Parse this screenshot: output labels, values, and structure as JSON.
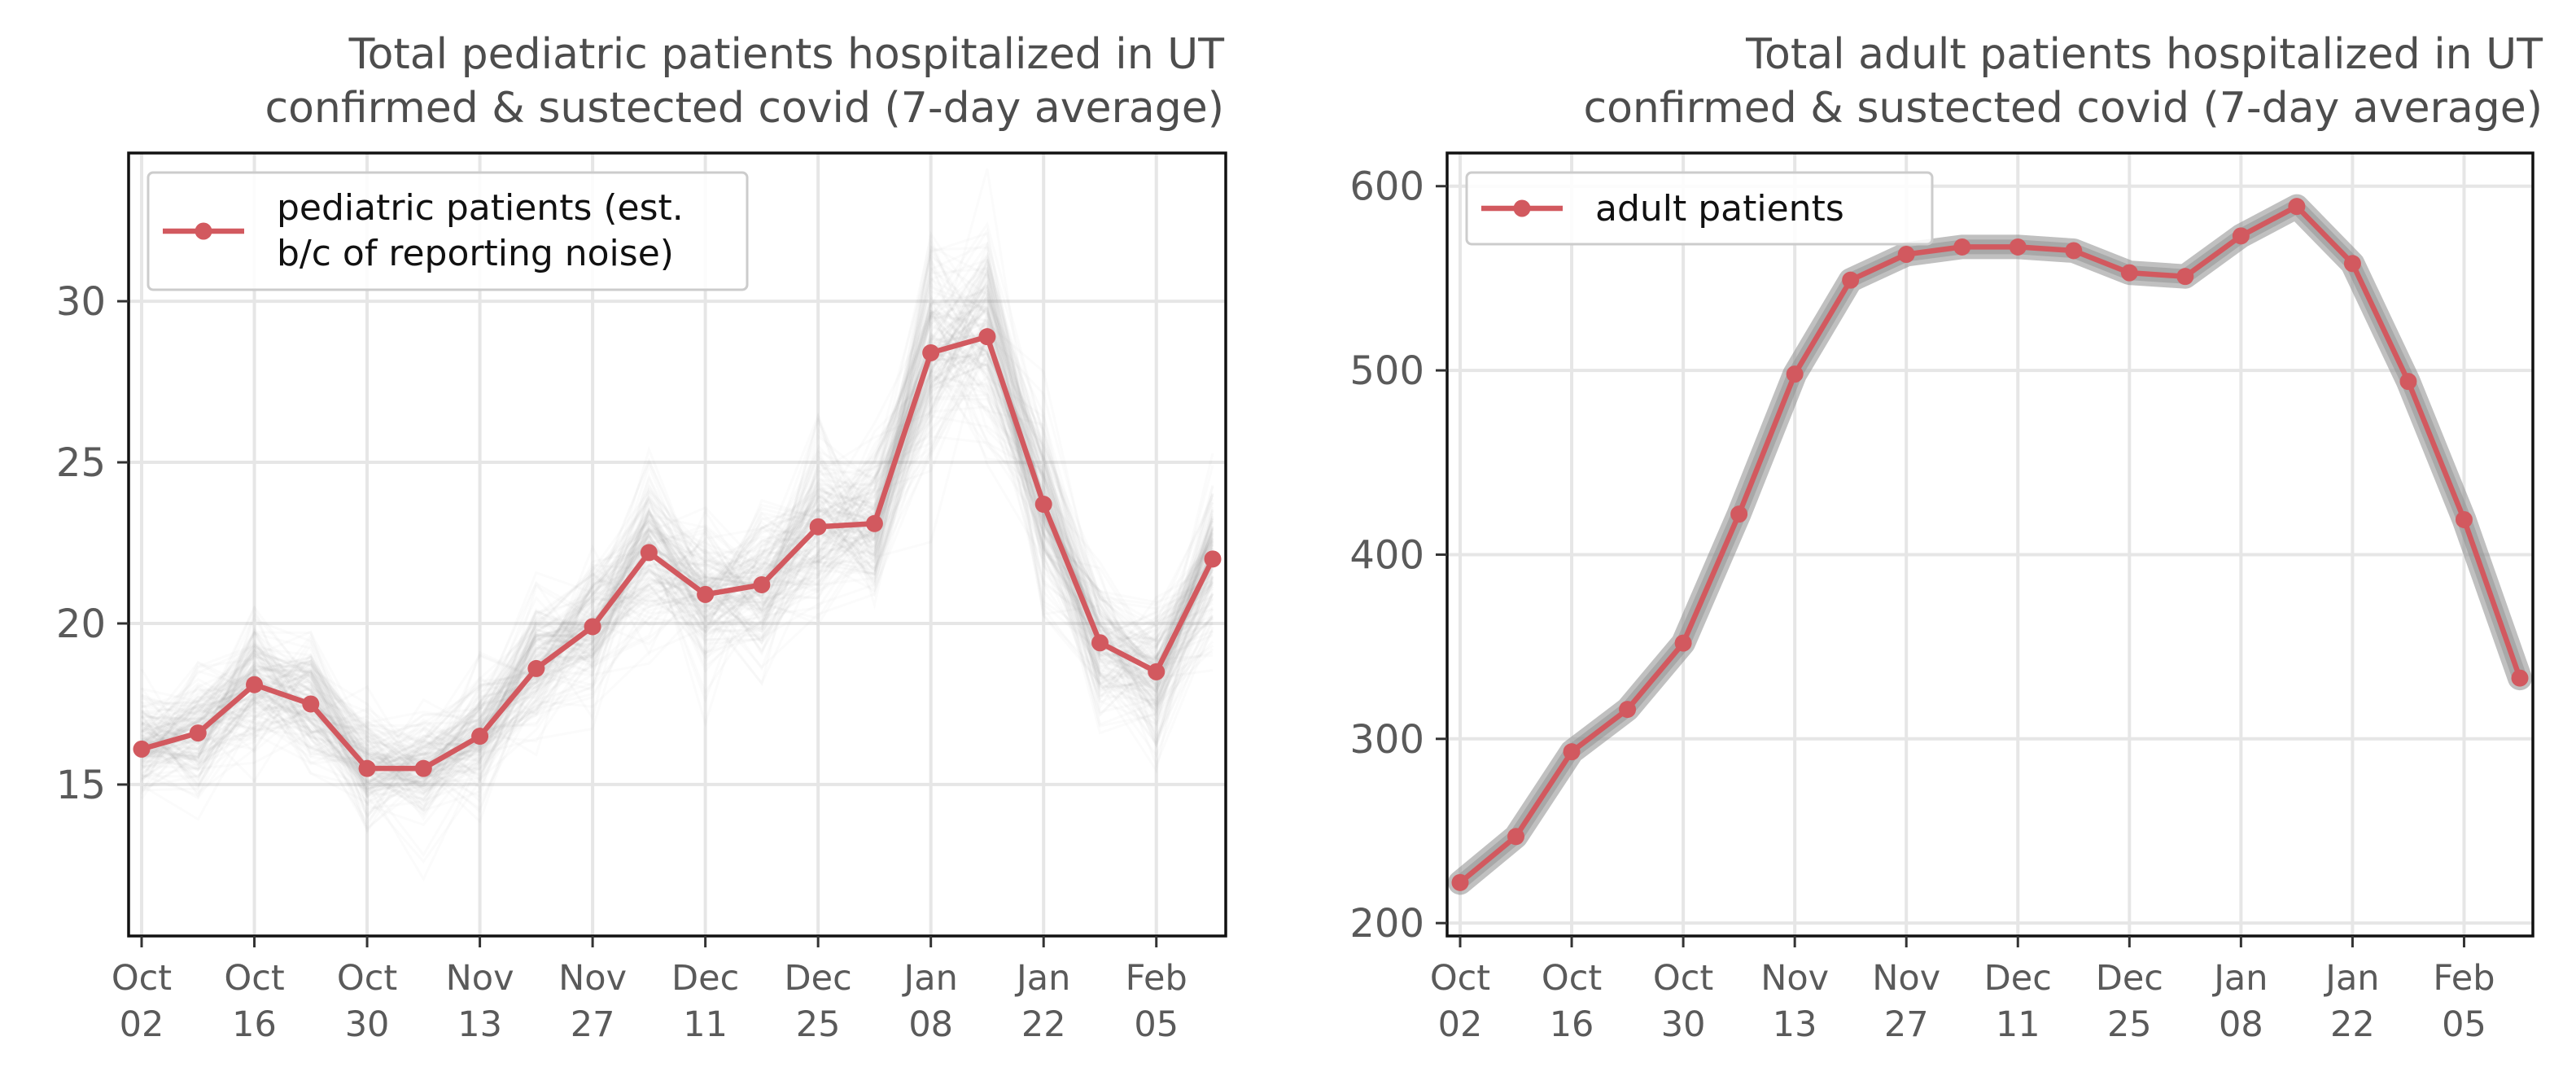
{
  "chart_data": [
    {
      "type": "line",
      "title_lines": [
        "Total pediatric patients hospitalized in UT",
        "confirmed & sustected covid (7-day average)"
      ],
      "xlabel": "",
      "ylabel": "",
      "x_tick_labels": [
        [
          "Oct",
          "02"
        ],
        [
          "Oct",
          "16"
        ],
        [
          "Oct",
          "30"
        ],
        [
          "Nov",
          "13"
        ],
        [
          "Nov",
          "27"
        ],
        [
          "Dec",
          "11"
        ],
        [
          "Dec",
          "25"
        ],
        [
          "Jan",
          "08"
        ],
        [
          "Jan",
          "22"
        ],
        [
          "Feb",
          "05"
        ]
      ],
      "y_ticks": [
        15,
        20,
        25,
        30
      ],
      "ylim": [
        10.3,
        34.6
      ],
      "grid": true,
      "legend_position": "top-left",
      "x": [
        "Oct 02",
        "Oct 09",
        "Oct 16",
        "Oct 23",
        "Oct 30",
        "Nov 06",
        "Nov 13",
        "Nov 20",
        "Nov 27",
        "Dec 04",
        "Dec 11",
        "Dec 18",
        "Dec 25",
        "Jan 01",
        "Jan 08",
        "Jan 15",
        "Jan 22",
        "Jan 29",
        "Feb 05",
        "Feb 12"
      ],
      "series": [
        {
          "name": "pediatric patients (est. b/c of reporting noise)",
          "legend_lines": [
            "pediatric patients (est.",
            "b/c of reporting noise)"
          ],
          "values": [
            16.1,
            16.6,
            18.1,
            17.5,
            15.5,
            15.5,
            16.5,
            18.6,
            19.9,
            22.2,
            20.9,
            21.2,
            23.0,
            23.1,
            28.4,
            28.9,
            23.7,
            19.4,
            18.5,
            22.0
          ]
        }
      ],
      "band": {
        "description": "grey bootstrap noise lines",
        "spread_fraction": 0.15
      },
      "colors": {
        "line": "#d2595f",
        "band": "#808080",
        "grid": "#e6e6e6"
      }
    },
    {
      "type": "line",
      "title_lines": [
        "Total adult patients hospitalized in UT",
        "confirmed & sustected covid (7-day average)"
      ],
      "xlabel": "",
      "ylabel": "",
      "x_tick_labels": [
        [
          "Oct",
          "02"
        ],
        [
          "Oct",
          "16"
        ],
        [
          "Oct",
          "30"
        ],
        [
          "Nov",
          "13"
        ],
        [
          "Nov",
          "27"
        ],
        [
          "Dec",
          "11"
        ],
        [
          "Dec",
          "25"
        ],
        [
          "Jan",
          "08"
        ],
        [
          "Jan",
          "22"
        ],
        [
          "Feb",
          "05"
        ]
      ],
      "y_ticks": [
        200,
        300,
        400,
        500,
        600
      ],
      "ylim": [
        193,
        618
      ],
      "grid": true,
      "legend_position": "top-left",
      "x": [
        "Oct 02",
        "Oct 09",
        "Oct 16",
        "Oct 23",
        "Oct 30",
        "Nov 06",
        "Nov 13",
        "Nov 20",
        "Nov 27",
        "Dec 04",
        "Dec 11",
        "Dec 18",
        "Dec 25",
        "Jan 01",
        "Jan 08",
        "Jan 15",
        "Jan 22",
        "Jan 29",
        "Feb 05",
        "Feb 12"
      ],
      "series": [
        {
          "name": "adult patients",
          "legend_lines": [
            "adult patients"
          ],
          "values": [
            222,
            247,
            293,
            316,
            352,
            422,
            498,
            549,
            563,
            567,
            567,
            565,
            553,
            551,
            573,
            589,
            558,
            494,
            419,
            333
          ]
        }
      ],
      "band": {
        "description": "grey uncertainty band",
        "spread_fraction": 0.02
      },
      "colors": {
        "line": "#d2595f",
        "band": "#8c8c8c",
        "grid": "#e6e6e6"
      }
    }
  ]
}
